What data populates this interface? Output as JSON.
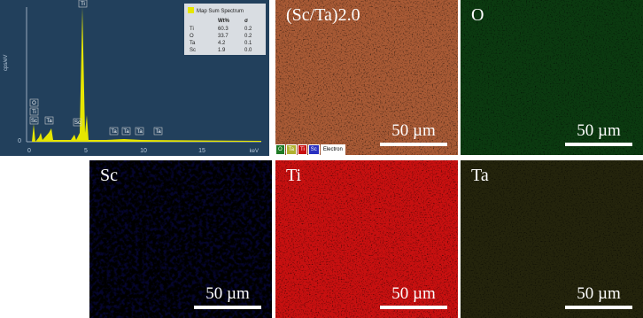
{
  "spectrum": {
    "legend_title": "Map Sum Spectrum",
    "table_header": [
      "Wt%",
      "σ"
    ],
    "rows": [
      [
        "Ti",
        "60.3",
        "0.2"
      ],
      [
        "O",
        "33.7",
        "0.2"
      ],
      [
        "Ta",
        "4.2",
        "0.1"
      ],
      [
        "Sc",
        "1.9",
        "0.0"
      ]
    ],
    "y_label": "cps/eV",
    "y_tick": "0",
    "x_ticks": [
      "0",
      "5",
      "10",
      "15"
    ],
    "x_unit": "keV",
    "peak_labels": [
      "O",
      "Ti",
      "Sc",
      "Ta",
      "Sc",
      "Ti",
      "Ta",
      "Ta",
      "Ta",
      "Ta"
    ]
  },
  "maps": [
    {
      "label": "(Sc/Ta)2.0",
      "scale": "50 µm"
    },
    {
      "label": "O",
      "scale": "50 µm"
    },
    {
      "label": "Sc",
      "scale": "50 µm"
    },
    {
      "label": "Ti",
      "scale": "50 µm"
    },
    {
      "label": "Ta",
      "scale": "50 µm"
    }
  ],
  "layer_legend": [
    "O",
    "Ta",
    "Ti",
    "Sc",
    "Electron"
  ]
}
